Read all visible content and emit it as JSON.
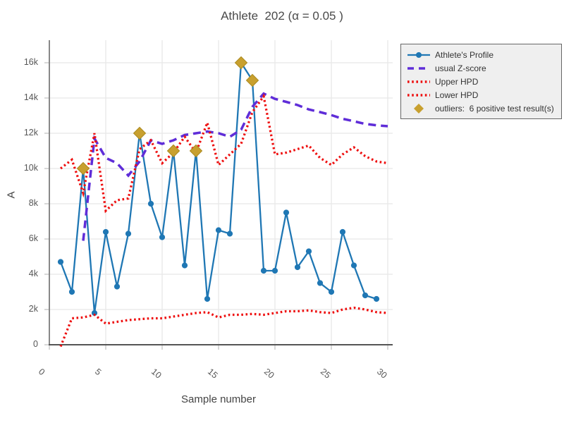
{
  "title": "Athlete  202 (α = 0.05 )",
  "axes": {
    "x": {
      "label": "Sample number",
      "ticks": [
        "0",
        "5",
        "10",
        "15",
        "20",
        "25",
        "30"
      ],
      "tick_values": [
        0,
        5,
        10,
        15,
        20,
        25,
        30
      ],
      "range": [
        0,
        30.5
      ]
    },
    "y": {
      "label": "A",
      "ticks": [
        "0",
        "2k",
        "4k",
        "6k",
        "8k",
        "10k",
        "12k",
        "14k",
        "16k"
      ],
      "tick_values": [
        0,
        2000,
        4000,
        6000,
        8000,
        10000,
        12000,
        14000,
        16000
      ],
      "range": [
        0,
        17000
      ]
    }
  },
  "legend": {
    "items": [
      {
        "label": "Athlete's Profile",
        "icon": "line-marker-swatch",
        "color_key": "profile_blue"
      },
      {
        "label": "usual Z-score",
        "icon": "dashed-line-swatch",
        "color_key": "zscore_purple"
      },
      {
        "label": "Upper HPD",
        "icon": "dotted-line-swatch",
        "color_key": "hpd_red"
      },
      {
        "label": "Lower HPD",
        "icon": "dotted-line-swatch",
        "color_key": "hpd_red"
      },
      {
        "label": "outliers:  6 positive test result(s)",
        "icon": "diamond-swatch",
        "color_key": "outlier_gold"
      }
    ]
  },
  "colors": {
    "profile_blue": "#1f77b4",
    "zscore_purple": "#5f2dd8",
    "hpd_red": "#ee0f0f",
    "outlier_gold": "#c8a02f",
    "outlier_gold_edge": "#ab8a1e",
    "grid": "#e8e8e8",
    "tick_mark": "#c4c4c4",
    "y_axis_line": "#888888",
    "zero_line": "#555555"
  },
  "chart_data": {
    "type": "line",
    "title": "Athlete  202 (α = 0.05 )",
    "xlabel": "Sample number",
    "ylabel": "A",
    "xlim": [
      0,
      30.5
    ],
    "ylim": [
      0,
      17000
    ],
    "grid": true,
    "legend_position": "outside-right-top",
    "series": [
      {
        "name": "Athlete's Profile",
        "style": "line_markers",
        "color_key": "profile_blue",
        "x": [
          1,
          2,
          3,
          4,
          5,
          6,
          7,
          8,
          9,
          10,
          11,
          12,
          13,
          14,
          15,
          16,
          17,
          18,
          19,
          20,
          21,
          22,
          23,
          24,
          25,
          26,
          27,
          28,
          29
        ],
        "values": [
          4700,
          3000,
          10000,
          1800,
          6400,
          3300,
          6300,
          12000,
          8000,
          6100,
          11000,
          4500,
          11000,
          2600,
          6500,
          6300,
          16000,
          15000,
          4200,
          4200,
          7500,
          4400,
          5300,
          3500,
          3000,
          6400,
          4500,
          2800,
          2600
        ]
      },
      {
        "name": "usual Z-score",
        "style": "dash",
        "color_key": "zscore_purple",
        "x": [
          3,
          4,
          5,
          6,
          7,
          8,
          9,
          10,
          11,
          12,
          13,
          14,
          15,
          16,
          17,
          18,
          19,
          20,
          21,
          22,
          23,
          24,
          25,
          26,
          27,
          28,
          29,
          30
        ],
        "values": [
          5900,
          11700,
          10600,
          10300,
          9600,
          10400,
          11600,
          11400,
          11600,
          11900,
          12000,
          12100,
          12000,
          11800,
          12200,
          13500,
          14250,
          13950,
          13780,
          13600,
          13350,
          13200,
          13030,
          12820,
          12680,
          12530,
          12450,
          12400
        ]
      },
      {
        "name": "Upper HPD",
        "style": "dot",
        "color_key": "hpd_red",
        "x": [
          1,
          2,
          3,
          4,
          5,
          6,
          7,
          8,
          9,
          10,
          11,
          12,
          13,
          14,
          15,
          16,
          17,
          18,
          19,
          20,
          21,
          22,
          23,
          24,
          25,
          26,
          27,
          28,
          29,
          30
        ],
        "values": [
          10000,
          10500,
          8600,
          12000,
          7600,
          8200,
          8300,
          11100,
          11600,
          10300,
          10900,
          11800,
          10900,
          12600,
          10200,
          10800,
          11400,
          13200,
          14100,
          10800,
          10900,
          11100,
          11300,
          10600,
          10200,
          10800,
          11200,
          10700,
          10400,
          10300
        ]
      },
      {
        "name": "Lower HPD",
        "style": "dot",
        "color_key": "hpd_red",
        "x": [
          1,
          2,
          3,
          4,
          5,
          6,
          7,
          8,
          9,
          10,
          11,
          12,
          13,
          14,
          15,
          16,
          17,
          18,
          19,
          20,
          21,
          22,
          23,
          24,
          25,
          26,
          27,
          28,
          29,
          30
        ],
        "values": [
          -100,
          1500,
          1550,
          1700,
          1200,
          1300,
          1400,
          1450,
          1500,
          1500,
          1600,
          1700,
          1800,
          1850,
          1550,
          1700,
          1700,
          1750,
          1700,
          1800,
          1900,
          1900,
          1950,
          1850,
          1800,
          2000,
          2100,
          2000,
          1850,
          1800
        ]
      },
      {
        "name": "outliers",
        "style": "diamond",
        "color_key": "outlier_gold",
        "x": [
          3,
          8,
          11,
          13,
          17,
          18
        ],
        "values": [
          10000,
          12000,
          11000,
          11000,
          16000,
          15000
        ]
      }
    ]
  }
}
